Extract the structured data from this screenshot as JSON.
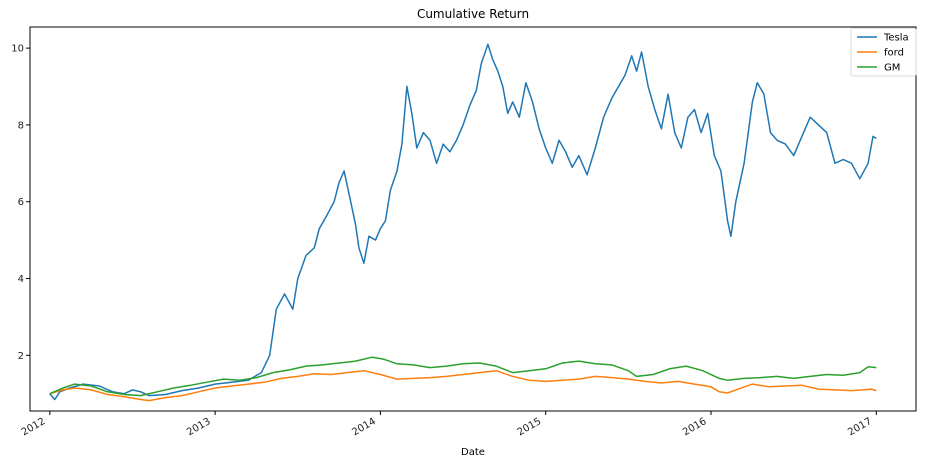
{
  "chart_data": {
    "type": "line",
    "title": "Cumulative Return",
    "xlabel": "Date",
    "ylabel": "",
    "xlim": [
      2011.88,
      2017.24
    ],
    "ylim": [
      0.55,
      10.55
    ],
    "x_ticks": [
      2012,
      2013,
      2014,
      2015,
      2016,
      2017
    ],
    "x_tick_labels": [
      "2012",
      "2013",
      "2014",
      "2015",
      "2016",
      "2017"
    ],
    "y_ticks": [
      2,
      4,
      6,
      8,
      10
    ],
    "y_tick_labels": [
      "2",
      "4",
      "6",
      "8",
      "10"
    ],
    "grid": false,
    "legend_position": "top-right",
    "series": [
      {
        "name": "Tesla",
        "color": "#1f77b4",
        "points": [
          [
            2012.0,
            1.0
          ],
          [
            2012.03,
            0.85
          ],
          [
            2012.06,
            1.05
          ],
          [
            2012.12,
            1.15
          ],
          [
            2012.2,
            1.25
          ],
          [
            2012.3,
            1.2
          ],
          [
            2012.38,
            1.05
          ],
          [
            2012.45,
            1.0
          ],
          [
            2012.5,
            1.1
          ],
          [
            2012.55,
            1.05
          ],
          [
            2012.6,
            0.95
          ],
          [
            2012.7,
            0.98
          ],
          [
            2012.8,
            1.08
          ],
          [
            2012.9,
            1.15
          ],
          [
            2013.0,
            1.25
          ],
          [
            2013.1,
            1.3
          ],
          [
            2013.2,
            1.35
          ],
          [
            2013.28,
            1.55
          ],
          [
            2013.33,
            2.0
          ],
          [
            2013.37,
            3.2
          ],
          [
            2013.42,
            3.6
          ],
          [
            2013.47,
            3.2
          ],
          [
            2013.5,
            4.0
          ],
          [
            2013.55,
            4.6
          ],
          [
            2013.6,
            4.8
          ],
          [
            2013.63,
            5.3
          ],
          [
            2013.67,
            5.6
          ],
          [
            2013.72,
            6.0
          ],
          [
            2013.75,
            6.5
          ],
          [
            2013.78,
            6.8
          ],
          [
            2013.82,
            6.0
          ],
          [
            2013.85,
            5.4
          ],
          [
            2013.87,
            4.8
          ],
          [
            2013.9,
            4.4
          ],
          [
            2013.93,
            5.1
          ],
          [
            2013.97,
            5.0
          ],
          [
            2014.0,
            5.3
          ],
          [
            2014.03,
            5.5
          ],
          [
            2014.06,
            6.3
          ],
          [
            2014.1,
            6.8
          ],
          [
            2014.13,
            7.5
          ],
          [
            2014.16,
            9.0
          ],
          [
            2014.19,
            8.3
          ],
          [
            2014.22,
            7.4
          ],
          [
            2014.26,
            7.8
          ],
          [
            2014.3,
            7.6
          ],
          [
            2014.34,
            7.0
          ],
          [
            2014.38,
            7.5
          ],
          [
            2014.42,
            7.3
          ],
          [
            2014.46,
            7.6
          ],
          [
            2014.5,
            8.0
          ],
          [
            2014.54,
            8.5
          ],
          [
            2014.58,
            8.9
          ],
          [
            2014.61,
            9.6
          ],
          [
            2014.65,
            10.1
          ],
          [
            2014.68,
            9.7
          ],
          [
            2014.71,
            9.4
          ],
          [
            2014.74,
            9.0
          ],
          [
            2014.77,
            8.3
          ],
          [
            2014.8,
            8.6
          ],
          [
            2014.84,
            8.2
          ],
          [
            2014.88,
            9.1
          ],
          [
            2014.92,
            8.6
          ],
          [
            2014.96,
            7.9
          ],
          [
            2015.0,
            7.4
          ],
          [
            2015.04,
            7.0
          ],
          [
            2015.08,
            7.6
          ],
          [
            2015.12,
            7.3
          ],
          [
            2015.16,
            6.9
          ],
          [
            2015.2,
            7.2
          ],
          [
            2015.25,
            6.7
          ],
          [
            2015.3,
            7.4
          ],
          [
            2015.35,
            8.2
          ],
          [
            2015.4,
            8.7
          ],
          [
            2015.44,
            9.0
          ],
          [
            2015.48,
            9.3
          ],
          [
            2015.52,
            9.8
          ],
          [
            2015.55,
            9.4
          ],
          [
            2015.58,
            9.9
          ],
          [
            2015.62,
            9.0
          ],
          [
            2015.66,
            8.4
          ],
          [
            2015.7,
            7.9
          ],
          [
            2015.74,
            8.8
          ],
          [
            2015.78,
            7.8
          ],
          [
            2015.82,
            7.4
          ],
          [
            2015.86,
            8.2
          ],
          [
            2015.9,
            8.4
          ],
          [
            2015.94,
            7.8
          ],
          [
            2015.98,
            8.3
          ],
          [
            2016.02,
            7.2
          ],
          [
            2016.06,
            6.8
          ],
          [
            2016.1,
            5.5
          ],
          [
            2016.12,
            5.1
          ],
          [
            2016.15,
            6.0
          ],
          [
            2016.2,
            7.0
          ],
          [
            2016.25,
            8.6
          ],
          [
            2016.28,
            9.1
          ],
          [
            2016.32,
            8.8
          ],
          [
            2016.36,
            7.8
          ],
          [
            2016.4,
            7.6
          ],
          [
            2016.45,
            7.5
          ],
          [
            2016.5,
            7.2
          ],
          [
            2016.55,
            7.7
          ],
          [
            2016.6,
            8.2
          ],
          [
            2016.65,
            8.0
          ],
          [
            2016.7,
            7.8
          ],
          [
            2016.75,
            7.0
          ],
          [
            2016.8,
            7.1
          ],
          [
            2016.85,
            7.0
          ],
          [
            2016.9,
            6.6
          ],
          [
            2016.95,
            7.0
          ],
          [
            2016.98,
            7.7
          ],
          [
            2017.0,
            7.65
          ]
        ]
      },
      {
        "name": "ford",
        "color": "#ff7f0e",
        "points": [
          [
            2012.0,
            1.0
          ],
          [
            2012.08,
            1.1
          ],
          [
            2012.15,
            1.15
          ],
          [
            2012.25,
            1.1
          ],
          [
            2012.35,
            0.98
          ],
          [
            2012.45,
            0.92
          ],
          [
            2012.55,
            0.85
          ],
          [
            2012.6,
            0.82
          ],
          [
            2012.7,
            0.9
          ],
          [
            2012.8,
            0.95
          ],
          [
            2012.9,
            1.05
          ],
          [
            2013.0,
            1.15
          ],
          [
            2013.1,
            1.2
          ],
          [
            2013.2,
            1.25
          ],
          [
            2013.3,
            1.3
          ],
          [
            2013.4,
            1.4
          ],
          [
            2013.5,
            1.45
          ],
          [
            2013.6,
            1.52
          ],
          [
            2013.7,
            1.5
          ],
          [
            2013.8,
            1.55
          ],
          [
            2013.9,
            1.6
          ],
          [
            2014.0,
            1.5
          ],
          [
            2014.1,
            1.38
          ],
          [
            2014.2,
            1.4
          ],
          [
            2014.3,
            1.42
          ],
          [
            2014.4,
            1.45
          ],
          [
            2014.5,
            1.5
          ],
          [
            2014.6,
            1.55
          ],
          [
            2014.7,
            1.6
          ],
          [
            2014.8,
            1.45
          ],
          [
            2014.9,
            1.35
          ],
          [
            2015.0,
            1.32
          ],
          [
            2015.1,
            1.35
          ],
          [
            2015.2,
            1.38
          ],
          [
            2015.3,
            1.45
          ],
          [
            2015.4,
            1.42
          ],
          [
            2015.5,
            1.38
          ],
          [
            2015.6,
            1.32
          ],
          [
            2015.7,
            1.28
          ],
          [
            2015.8,
            1.32
          ],
          [
            2015.9,
            1.25
          ],
          [
            2016.0,
            1.18
          ],
          [
            2016.05,
            1.05
          ],
          [
            2016.1,
            1.02
          ],
          [
            2016.15,
            1.1
          ],
          [
            2016.25,
            1.25
          ],
          [
            2016.35,
            1.18
          ],
          [
            2016.45,
            1.2
          ],
          [
            2016.55,
            1.22
          ],
          [
            2016.65,
            1.12
          ],
          [
            2016.75,
            1.1
          ],
          [
            2016.85,
            1.08
          ],
          [
            2016.92,
            1.1
          ],
          [
            2016.97,
            1.12
          ],
          [
            2017.0,
            1.08
          ]
        ]
      },
      {
        "name": "GM",
        "color": "#2ca02c",
        "points": [
          [
            2012.0,
            1.0
          ],
          [
            2012.08,
            1.15
          ],
          [
            2012.15,
            1.25
          ],
          [
            2012.25,
            1.2
          ],
          [
            2012.35,
            1.05
          ],
          [
            2012.45,
            0.98
          ],
          [
            2012.55,
            0.95
          ],
          [
            2012.65,
            1.05
          ],
          [
            2012.75,
            1.15
          ],
          [
            2012.85,
            1.22
          ],
          [
            2012.95,
            1.3
          ],
          [
            2013.05,
            1.38
          ],
          [
            2013.15,
            1.35
          ],
          [
            2013.25,
            1.42
          ],
          [
            2013.35,
            1.55
          ],
          [
            2013.45,
            1.62
          ],
          [
            2013.55,
            1.72
          ],
          [
            2013.65,
            1.75
          ],
          [
            2013.75,
            1.8
          ],
          [
            2013.85,
            1.85
          ],
          [
            2013.95,
            1.95
          ],
          [
            2014.02,
            1.9
          ],
          [
            2014.1,
            1.78
          ],
          [
            2014.2,
            1.75
          ],
          [
            2014.3,
            1.68
          ],
          [
            2014.4,
            1.72
          ],
          [
            2014.5,
            1.78
          ],
          [
            2014.6,
            1.8
          ],
          [
            2014.7,
            1.72
          ],
          [
            2014.8,
            1.55
          ],
          [
            2014.9,
            1.6
          ],
          [
            2015.0,
            1.65
          ],
          [
            2015.1,
            1.8
          ],
          [
            2015.2,
            1.85
          ],
          [
            2015.3,
            1.78
          ],
          [
            2015.4,
            1.75
          ],
          [
            2015.5,
            1.6
          ],
          [
            2015.55,
            1.45
          ],
          [
            2015.65,
            1.5
          ],
          [
            2015.75,
            1.65
          ],
          [
            2015.85,
            1.72
          ],
          [
            2015.95,
            1.6
          ],
          [
            2016.05,
            1.4
          ],
          [
            2016.1,
            1.35
          ],
          [
            2016.2,
            1.4
          ],
          [
            2016.3,
            1.42
          ],
          [
            2016.4,
            1.45
          ],
          [
            2016.5,
            1.4
          ],
          [
            2016.6,
            1.45
          ],
          [
            2016.7,
            1.5
          ],
          [
            2016.8,
            1.48
          ],
          [
            2016.9,
            1.55
          ],
          [
            2016.95,
            1.7
          ],
          [
            2017.0,
            1.68
          ]
        ]
      }
    ]
  }
}
